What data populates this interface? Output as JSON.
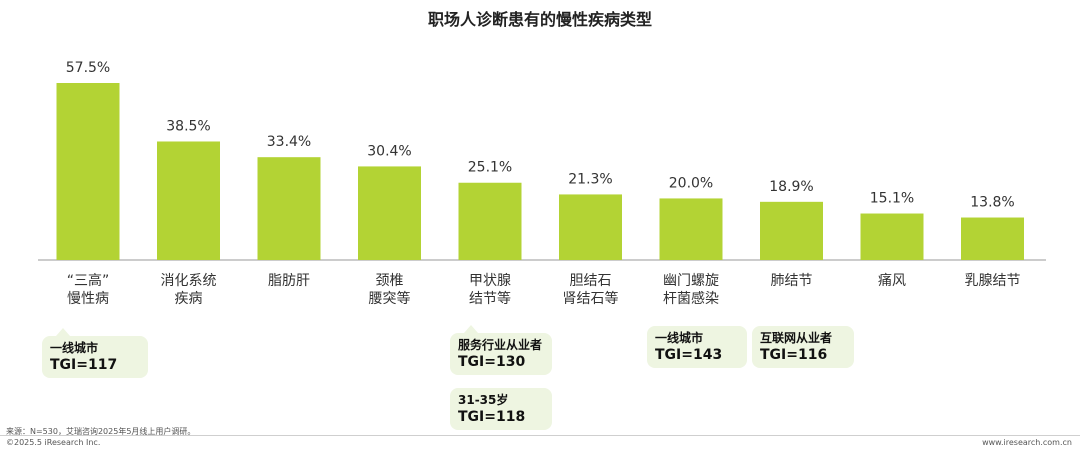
{
  "chart_data": {
    "type": "bar",
    "title": "职场人诊断患有的慢性疾病类型",
    "categories": [
      [
        "“三高”",
        "慢性病"
      ],
      [
        "消化系统",
        "疾病"
      ],
      [
        "脂肪肝"
      ],
      [
        "颈椎",
        "腰突等"
      ],
      [
        "甲状腺",
        "结节等"
      ],
      [
        "胆结石",
        "肾结石等"
      ],
      [
        "幽门螺旋",
        "杆菌感染"
      ],
      [
        "肺结节"
      ],
      [
        "痛风"
      ],
      [
        "乳腺结节"
      ]
    ],
    "values": [
      57.5,
      38.5,
      33.4,
      30.4,
      25.1,
      21.3,
      20.0,
      18.9,
      15.1,
      13.8
    ],
    "value_labels": [
      "57.5%",
      "38.5%",
      "33.4%",
      "30.4%",
      "25.1%",
      "21.3%",
      "20.0%",
      "18.9%",
      "15.1%",
      "13.8%"
    ],
    "bar_color": "#b3d334",
    "ylim": [
      0,
      60
    ]
  },
  "callouts": [
    {
      "line1": "一线城市",
      "line2": "TGI=117"
    },
    {
      "line1": "服务行业从业者",
      "line2": "TGI=130"
    },
    {
      "line1": "31-35岁",
      "line2": "TGI=118"
    },
    {
      "line1": "一线城市",
      "line2": "TGI=143"
    },
    {
      "line1": "互联网从业者",
      "line2": "TGI=116"
    }
  ],
  "footer": {
    "source": "来源：N=530，艾瑞咨询2025年5月线上用户调研。",
    "copyright": "©2025.5 iResearch Inc.",
    "website": "www.iresearch.com.cn"
  }
}
